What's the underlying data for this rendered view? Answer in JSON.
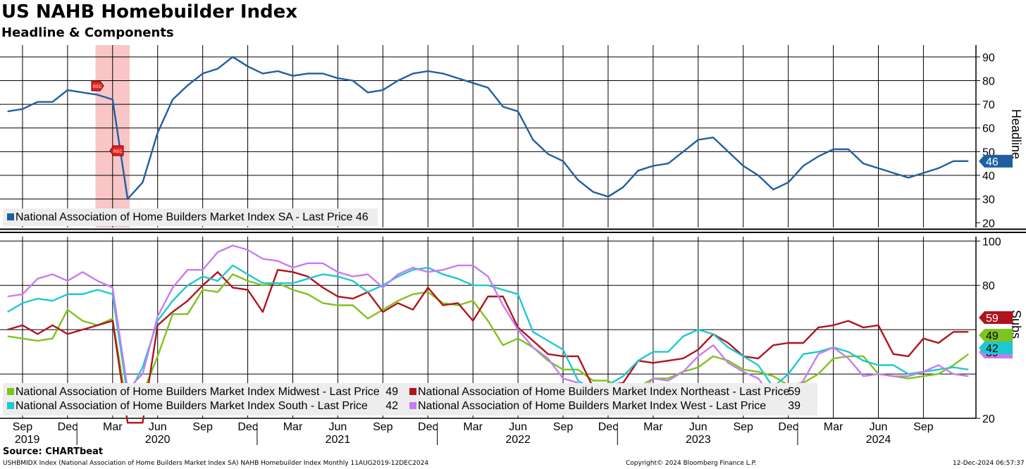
{
  "title": "US NAHB Homebuilder Index",
  "subtitle": "Headline & Components",
  "source": "Source: CHARTbeat",
  "footer_left": "USHBMIDX Index (National Association of Home Builders Market Index SA) NAHB Homebuilder Index  Monthly 11AUG2019-12DEC2024",
  "footer_center": "Copyright© 2024 Bloomberg Finance L.P.",
  "footer_right": "12-Dec-2024 06:57:37",
  "colors": {
    "headline": "#1f5fa0",
    "midwest": "#7dc41e",
    "northeast": "#b0141e",
    "south": "#1ec8d0",
    "west": "#c77cf2",
    "recession": "#f4a0a0"
  },
  "chart_data": [
    {
      "type": "line",
      "panel": "top",
      "ylabel": "Headline",
      "ylim": [
        18,
        95
      ],
      "yticks": [
        20,
        30,
        40,
        50,
        60,
        70,
        80,
        90
      ],
      "x_months": [
        "2019-08",
        "2019-09",
        "2019-10",
        "2019-11",
        "2019-12",
        "2020-01",
        "2020-02",
        "2020-03",
        "2020-04",
        "2020-05",
        "2020-06",
        "2020-07",
        "2020-08",
        "2020-09",
        "2020-10",
        "2020-11",
        "2020-12",
        "2021-01",
        "2021-02",
        "2021-03",
        "2021-04",
        "2021-05",
        "2021-06",
        "2021-07",
        "2021-08",
        "2021-09",
        "2021-10",
        "2021-11",
        "2021-12",
        "2022-01",
        "2022-02",
        "2022-03",
        "2022-04",
        "2022-05",
        "2022-06",
        "2022-07",
        "2022-08",
        "2022-09",
        "2022-10",
        "2022-11",
        "2022-12",
        "2023-01",
        "2023-02",
        "2023-03",
        "2023-04",
        "2023-05",
        "2023-06",
        "2023-07",
        "2023-08",
        "2023-09",
        "2023-10",
        "2023-11",
        "2023-12",
        "2024-01",
        "2024-02",
        "2024-03",
        "2024-04",
        "2024-05",
        "2024-06",
        "2024-07",
        "2024-08",
        "2024-09",
        "2024-10",
        "2024-11",
        "2024-12"
      ],
      "series": [
        {
          "name": "National Association of Home Builders Market Index SA - Last Price 46",
          "key": "headline",
          "last": "46",
          "values": [
            67,
            68,
            71,
            71,
            76,
            75,
            74,
            72,
            30,
            37,
            58,
            72,
            78,
            83,
            85,
            90,
            86,
            83,
            84,
            82,
            83,
            83,
            81,
            80,
            75,
            76,
            80,
            83,
            84,
            83,
            81,
            79,
            77,
            69,
            67,
            55,
            49,
            46,
            38,
            33,
            31,
            35,
            42,
            44,
            45,
            50,
            55,
            56,
            50,
            44,
            40,
            34,
            37,
            44,
            48,
            51,
            51,
            45,
            43,
            41,
            39,
            41,
            43,
            46,
            46
          ]
        }
      ],
      "recession": {
        "start": "2020-02",
        "end": "2020-04",
        "markers": [
          "REC",
          "REC"
        ]
      }
    },
    {
      "type": "line",
      "panel": "bottom",
      "ylabel": "Subs",
      "ylim": [
        20,
        102
      ],
      "yticks": [
        20,
        80,
        100
      ],
      "series": [
        {
          "name": "National Association of Home Builders Market Index Midwest - Last Price",
          "key": "midwest",
          "last": "49",
          "values": [
            57,
            56,
            55,
            56,
            69,
            64,
            62,
            65,
            23,
            31,
            48,
            67,
            67,
            78,
            77,
            85,
            82,
            80,
            81,
            78,
            76,
            72,
            71,
            71,
            65,
            69,
            73,
            76,
            77,
            72,
            71,
            73,
            64,
            53,
            56,
            52,
            46,
            42,
            42,
            37,
            37,
            32,
            34,
            38,
            38,
            41,
            43,
            48,
            46,
            42,
            41,
            39,
            35,
            36,
            40,
            47,
            48,
            48,
            40,
            39,
            38,
            39,
            40,
            44,
            49
          ]
        },
        {
          "name": "National Association of Home Builders Market Index Northeast - Last Price",
          "key": "northeast",
          "last": "59",
          "values": [
            60,
            62,
            58,
            62,
            58,
            60,
            62,
            64,
            18,
            18,
            62,
            68,
            73,
            80,
            86,
            79,
            78,
            68,
            87,
            86,
            84,
            79,
            75,
            74,
            77,
            68,
            72,
            69,
            79,
            71,
            72,
            64,
            75,
            75,
            61,
            55,
            49,
            48,
            48,
            34,
            35,
            36,
            46,
            45,
            46,
            47,
            51,
            58,
            54,
            48,
            47,
            53,
            54,
            54,
            61,
            62,
            64,
            61,
            62,
            49,
            48,
            56,
            54,
            59,
            59
          ]
        },
        {
          "name": "National Association of Home Builders Market Index South - Last Price",
          "key": "south",
          "last": "42",
          "values": [
            68,
            72,
            74,
            73,
            76,
            76,
            78,
            76,
            30,
            43,
            64,
            73,
            80,
            84,
            82,
            89,
            85,
            81,
            81,
            81,
            83,
            85,
            84,
            82,
            77,
            80,
            84,
            87,
            88,
            85,
            83,
            80,
            80,
            78,
            76,
            59,
            55,
            51,
            37,
            33,
            35,
            39,
            46,
            50,
            50,
            57,
            60,
            58,
            52,
            48,
            44,
            34,
            40,
            49,
            50,
            52,
            50,
            46,
            44,
            44,
            40,
            41,
            42,
            43,
            42
          ]
        },
        {
          "name": "National Association of Home Builders Market Index West - Last Price",
          "key": "west",
          "last": "39",
          "values": [
            75,
            76,
            83,
            85,
            82,
            86,
            82,
            79,
            33,
            40,
            66,
            79,
            87,
            87,
            95,
            98,
            96,
            92,
            91,
            88,
            90,
            90,
            86,
            84,
            85,
            79,
            85,
            88,
            86,
            87,
            89,
            89,
            84,
            71,
            60,
            52,
            47,
            38,
            36,
            26,
            29,
            24,
            30,
            38,
            37,
            41,
            48,
            53,
            45,
            41,
            38,
            29,
            30,
            37,
            49,
            52,
            47,
            39,
            40,
            39,
            39,
            41,
            44,
            40,
            39
          ]
        }
      ]
    }
  ],
  "x_axis": {
    "month_labels": [
      {
        "month": "2019-09",
        "label": "Sep"
      },
      {
        "month": "2019-12",
        "label": "Dec"
      },
      {
        "month": "2020-03",
        "label": "Mar"
      },
      {
        "month": "2020-06",
        "label": "Jun"
      },
      {
        "month": "2020-09",
        "label": "Sep"
      },
      {
        "month": "2020-12",
        "label": "Dec"
      },
      {
        "month": "2021-03",
        "label": "Mar"
      },
      {
        "month": "2021-06",
        "label": "Jun"
      },
      {
        "month": "2021-09",
        "label": "Sep"
      },
      {
        "month": "2021-12",
        "label": "Dec"
      },
      {
        "month": "2022-03",
        "label": "Mar"
      },
      {
        "month": "2022-06",
        "label": "Jun"
      },
      {
        "month": "2022-09",
        "label": "Sep"
      },
      {
        "month": "2022-12",
        "label": "Dec"
      },
      {
        "month": "2023-03",
        "label": "Mar"
      },
      {
        "month": "2023-06",
        "label": "Jun"
      },
      {
        "month": "2023-09",
        "label": "Sep"
      },
      {
        "month": "2023-12",
        "label": "Dec"
      },
      {
        "month": "2024-03",
        "label": "Mar"
      },
      {
        "month": "2024-06",
        "label": "Jun"
      },
      {
        "month": "2024-09",
        "label": "Sep"
      }
    ],
    "year_labels": [
      {
        "month": "2019-08",
        "label": "2019"
      },
      {
        "month": "2020-06",
        "label": "2020"
      },
      {
        "month": "2021-06",
        "label": "2021"
      },
      {
        "month": "2022-06",
        "label": "2022"
      },
      {
        "month": "2023-06",
        "label": "2023"
      },
      {
        "month": "2024-06",
        "label": "2024"
      }
    ]
  }
}
